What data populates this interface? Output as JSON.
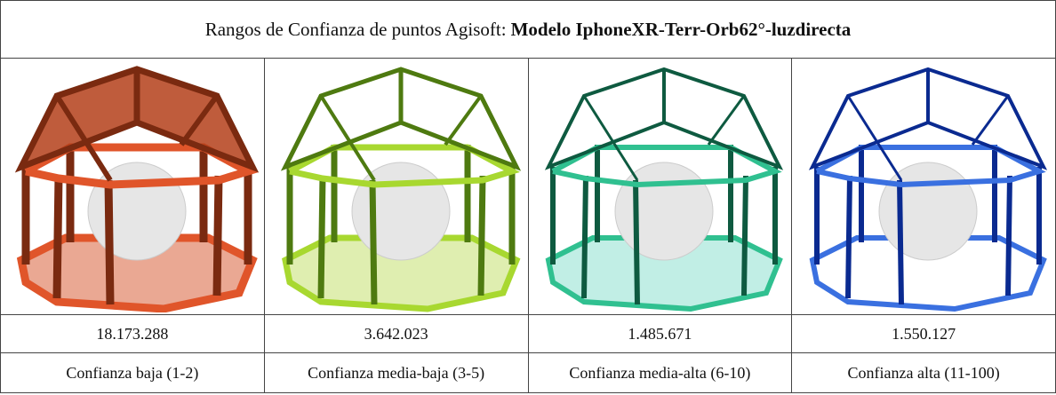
{
  "header": {
    "title_prefix": "Rangos de Confianza de puntos Agisoft:",
    "title_bold": "Modelo IphoneXR-Terr-Orb62°-luzdirecta"
  },
  "table": {
    "rows": [
      [
        "18.173.288",
        "3.642.023",
        "1.485.671",
        "1.550.127"
      ],
      [
        "Confianza baja (1-2)",
        "Confianza media-baja (3-5)",
        "Confianza media-alta (6-10)",
        "Confianza alta (11-100)"
      ]
    ]
  }
}
